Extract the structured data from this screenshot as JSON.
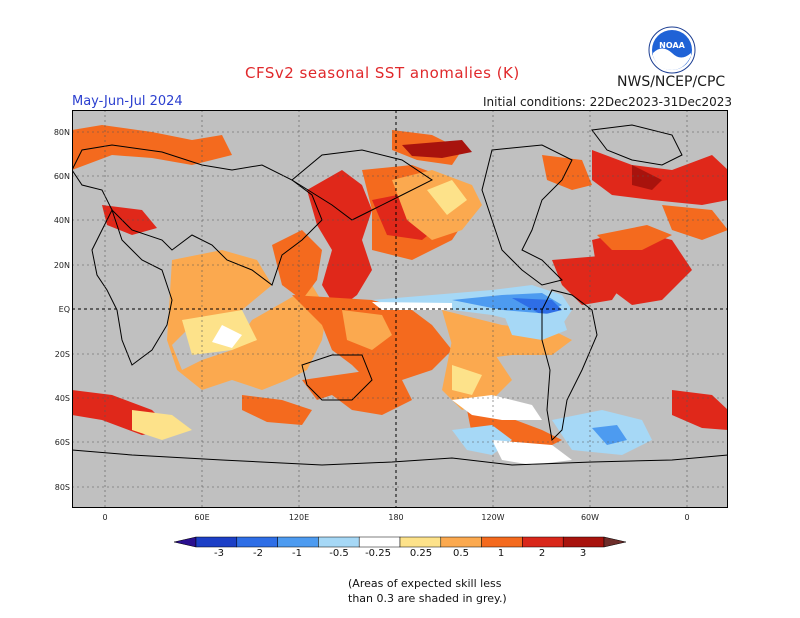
{
  "title": "CFSv2 seasonal SST anomalies (K)",
  "agency": "NWS/NCEP/CPC",
  "logo_text": "NOAA",
  "period": "May-Jun-Jul 2024",
  "initial_conditions": "Initial conditions: 22Dec2023-31Dec2023",
  "lat_labels": [
    "80N",
    "60N",
    "40N",
    "20N",
    "EQ",
    "20S",
    "40S",
    "60S",
    "80S"
  ],
  "lon_labels": [
    "0",
    "60E",
    "120E",
    "180",
    "120W",
    "60W",
    "0"
  ],
  "colorbar": {
    "ticks": [
      "-3",
      "-2",
      "-1",
      "-0.5",
      "-0.25",
      "0.25",
      "0.5",
      "1",
      "2",
      "3"
    ],
    "colors": [
      "#2a0f8f",
      "#1c3fc6",
      "#2e6ee6",
      "#4d9bf0",
      "#a6d8f6",
      "#ffffff",
      "#fde28a",
      "#fba94f",
      "#f46a1e",
      "#d9271a",
      "#a8130d",
      "#6d2d2a"
    ]
  },
  "note_line1": "(Areas of expected skill less",
  "note_line2": "than 0.3 are shaded in grey.)",
  "colors": {
    "land_mask": "#c0c0c0",
    "title": "#e0282b",
    "period": "#2b3fcf"
  }
}
